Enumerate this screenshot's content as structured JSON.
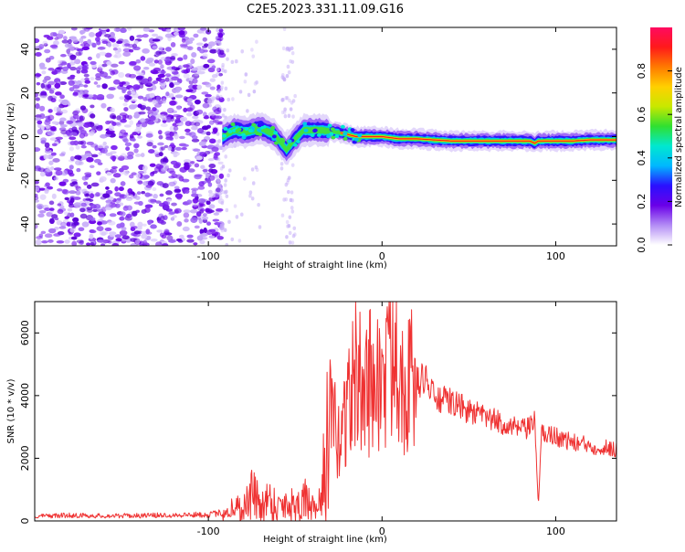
{
  "chart_data": [
    {
      "type": "heatmap",
      "title": "C2E5.2023.331.11.09.G16",
      "xlabel": "Height of straight line (km)",
      "ylabel": "Frequency (Hz)",
      "xlim": [
        -200,
        135
      ],
      "ylim": [
        -50,
        50
      ],
      "xticks": [
        -100,
        0,
        100
      ],
      "yticks": [
        -40,
        -20,
        0,
        20,
        40
      ],
      "colorbar": {
        "label": "Normalized spectral amplitude",
        "range": [
          0,
          1
        ],
        "ticks": [
          "0.0",
          "0.2",
          "0.4",
          "0.6",
          "0.8"
        ],
        "colors": [
          "#ffffff",
          "#b38cf5",
          "#6a00e8",
          "#2a10ff",
          "#00b8ff",
          "#00e8d0",
          "#30e030",
          "#c8e800",
          "#ffd000",
          "#ff7a00",
          "#ff1a1a",
          "#ff0a60"
        ]
      },
      "ridge": {
        "x": [
          -92,
          -85,
          -78,
          -70,
          -62,
          -58,
          -55,
          -50,
          -45,
          -35,
          -25,
          -15,
          0,
          10,
          20,
          40,
          60,
          85,
          88,
          90,
          100,
          110,
          120,
          135
        ],
        "y": [
          0,
          3,
          2,
          4,
          1,
          -3,
          -6,
          -1,
          3,
          3,
          2,
          0,
          0,
          -1,
          -1,
          -2,
          -2,
          -2,
          -3,
          -2,
          -2,
          -2,
          -1.5,
          -1.5
        ]
      },
      "noise_region_km": [
        -200,
        -92
      ]
    },
    {
      "type": "line",
      "xlabel": "Height of straight line (km)",
      "ylabel": "SNR (10 * v/v)",
      "xlim": [
        -200,
        135
      ],
      "ylim": [
        0,
        7000
      ],
      "xticks": [
        -100,
        0,
        100
      ],
      "yticks": [
        0,
        2000,
        4000,
        6000
      ],
      "color": "#ef3232",
      "series": [
        {
          "x": [
            -200,
            -180,
            -160,
            -140,
            -120,
            -100,
            -90,
            -85,
            -80,
            -75,
            -70,
            -65,
            -60,
            -55,
            -50,
            -45,
            -40,
            -37,
            -33,
            -30,
            -25,
            -20,
            -15,
            -10,
            -5,
            0,
            5,
            8,
            10,
            15,
            20,
            25,
            30,
            40,
            50,
            60,
            70,
            80,
            85,
            88,
            90,
            92,
            95,
            100,
            110,
            120,
            135
          ],
          "y": [
            150,
            180,
            160,
            170,
            190,
            200,
            280,
            450,
            380,
            900,
            500,
            700,
            450,
            600,
            500,
            700,
            400,
            200,
            1700,
            3400,
            2500,
            3800,
            4600,
            4100,
            4800,
            4200,
            5100,
            6900,
            4600,
            4500,
            4400,
            4600,
            3900,
            3800,
            3500,
            3300,
            3100,
            2900,
            2950,
            3200,
            500,
            2800,
            2800,
            2700,
            2500,
            2400,
            2300
          ]
        }
      ]
    }
  ]
}
